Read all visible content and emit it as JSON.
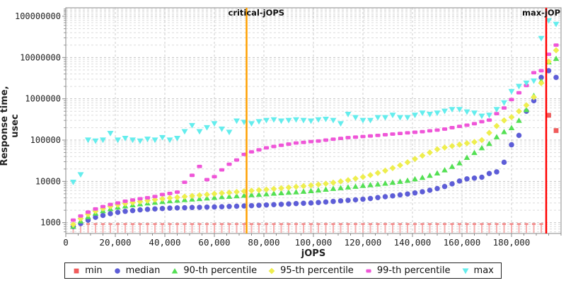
{
  "chart_data": {
    "type": "scatter",
    "title": "",
    "xlabel": "jOPS",
    "ylabel": "Response time, usec",
    "x_ticks": [
      0,
      20000,
      40000,
      60000,
      80000,
      100000,
      120000,
      140000,
      160000,
      180000
    ],
    "x_minor_step": 5000,
    "xlim": [
      0,
      200000
    ],
    "y_scale": "log",
    "y_ticks": [
      1000,
      10000,
      100000,
      1000000,
      10000000,
      100000000
    ],
    "ylim": [
      553,
      164000000
    ],
    "grid": true,
    "legend_position": "bottom",
    "vlines": [
      {
        "label": "critical-jOPS",
        "x": 73000,
        "color": "#ffa000"
      },
      {
        "label": "max-jOPS",
        "x": 194000,
        "color": "#ff0000"
      }
    ],
    "x": [
      3000,
      6000,
      9000,
      12000,
      15000,
      18000,
      21000,
      24000,
      27000,
      30000,
      33000,
      36000,
      39000,
      42000,
      45000,
      48000,
      51000,
      54000,
      57000,
      60000,
      63000,
      66000,
      69000,
      72000,
      75000,
      78000,
      81000,
      84000,
      87000,
      90000,
      93000,
      96000,
      99000,
      102000,
      105000,
      108000,
      111000,
      114000,
      117000,
      120000,
      123000,
      126000,
      129000,
      132000,
      135000,
      138000,
      141000,
      144000,
      147000,
      150000,
      153000,
      156000,
      159000,
      162000,
      165000,
      168000,
      171000,
      174000,
      177000,
      180000,
      183000,
      186000,
      189000,
      192000,
      195000,
      198000
    ],
    "series": [
      {
        "name": "min",
        "marker": "square",
        "color": "#f25b5b",
        "values": [
          930,
          930,
          930,
          930,
          930,
          930,
          930,
          930,
          930,
          930,
          930,
          930,
          930,
          930,
          930,
          930,
          930,
          930,
          930,
          930,
          930,
          930,
          930,
          930,
          930,
          930,
          930,
          930,
          930,
          930,
          930,
          930,
          930,
          930,
          930,
          930,
          930,
          930,
          930,
          930,
          930,
          930,
          930,
          930,
          930,
          930,
          930,
          930,
          930,
          930,
          930,
          930,
          930,
          930,
          930,
          930,
          930,
          930,
          930,
          930,
          930,
          930,
          930,
          930,
          400000,
          170000
        ]
      },
      {
        "name": "median",
        "marker": "circle",
        "color": "#5d5dd8",
        "values": [
          800,
          950,
          1150,
          1350,
          1500,
          1650,
          1780,
          1880,
          1960,
          2040,
          2100,
          2150,
          2200,
          2250,
          2280,
          2300,
          2330,
          2350,
          2380,
          2400,
          2430,
          2470,
          2500,
          2540,
          2580,
          2630,
          2680,
          2730,
          2780,
          2840,
          2900,
          2950,
          3000,
          3080,
          3170,
          3270,
          3380,
          3480,
          3580,
          3700,
          3850,
          4050,
          4250,
          4450,
          4700,
          4950,
          5250,
          5600,
          6100,
          6700,
          7500,
          8700,
          10200,
          11500,
          12000,
          12600,
          15500,
          17000,
          29000,
          77000,
          130000,
          500000,
          900000,
          3300000,
          4800000,
          3300000
        ]
      },
      {
        "name": "90-th percentile",
        "marker": "triangle-up",
        "color": "#54e054",
        "values": [
          820,
          1100,
          1400,
          1700,
          1950,
          2180,
          2380,
          2550,
          2700,
          2850,
          3000,
          3120,
          3250,
          3400,
          3500,
          3620,
          3720,
          3820,
          3950,
          4100,
          4250,
          4350,
          4480,
          4600,
          4750,
          4850,
          4980,
          5150,
          5300,
          5450,
          5550,
          5750,
          5950,
          6150,
          6450,
          6750,
          7000,
          7300,
          7600,
          7950,
          8300,
          8600,
          9000,
          9500,
          10000,
          10600,
          11500,
          12500,
          14000,
          16000,
          19000,
          23000,
          28000,
          38000,
          50000,
          65000,
          83000,
          120000,
          160000,
          200000,
          300000,
          550000,
          1200000,
          2700000,
          7800000,
          9500000
        ]
      },
      {
        "name": "95-th percentile",
        "marker": "diamond",
        "color": "#eeee4e",
        "values": [
          900,
          1250,
          1600,
          1900,
          2200,
          2480,
          2700,
          2900,
          3080,
          3250,
          3420,
          3600,
          3780,
          3950,
          4100,
          4280,
          4450,
          4600,
          4800,
          5000,
          5200,
          5350,
          5550,
          5750,
          5950,
          6150,
          6350,
          6600,
          6850,
          7100,
          7400,
          7700,
          8000,
          8400,
          8800,
          9300,
          10000,
          10700,
          11700,
          12800,
          14200,
          16000,
          18200,
          21000,
          24500,
          29000,
          35000,
          42000,
          50000,
          60000,
          66000,
          72000,
          78000,
          84000,
          90000,
          100000,
          150000,
          220000,
          300000,
          360000,
          500000,
          700000,
          1100000,
          2400000,
          8000000,
          15000000
        ]
      },
      {
        "name": "99-th percentile",
        "marker": "hbar",
        "color": "#ef56d8",
        "values": [
          1150,
          1450,
          1800,
          2150,
          2450,
          2750,
          3000,
          3300,
          3550,
          3800,
          4000,
          4300,
          4800,
          5100,
          5500,
          9500,
          14000,
          23000,
          11000,
          13000,
          19000,
          26000,
          33000,
          45000,
          52000,
          58000,
          65000,
          70000,
          75000,
          80000,
          85000,
          88000,
          92000,
          95000,
          100000,
          105000,
          110000,
          115000,
          118000,
          122000,
          126000,
          130000,
          135000,
          140000,
          145000,
          150000,
          155000,
          160000,
          168000,
          175000,
          185000,
          200000,
          215000,
          230000,
          250000,
          280000,
          305000,
          437000,
          600000,
          960000,
          1400000,
          2100000,
          4300000,
          4800000,
          12000000,
          20000000
        ]
      },
      {
        "name": "max",
        "marker": "triangle-down",
        "color": "#64eded",
        "values": [
          9500,
          14500,
          100000,
          95000,
          100000,
          145000,
          100000,
          110000,
          100000,
          95000,
          105000,
          100000,
          115000,
          100000,
          110000,
          160000,
          225000,
          160000,
          200000,
          250000,
          185000,
          155000,
          290000,
          270000,
          250000,
          280000,
          300000,
          310000,
          290000,
          300000,
          310000,
          300000,
          290000,
          310000,
          320000,
          300000,
          250000,
          420000,
          350000,
          300000,
          300000,
          350000,
          350000,
          400000,
          350000,
          350000,
          400000,
          450000,
          420000,
          450000,
          500000,
          550000,
          550000,
          480000,
          450000,
          380000,
          400000,
          550000,
          800000,
          1500000,
          2000000,
          2400000,
          2700000,
          29000000,
          78000000,
          64000000
        ]
      }
    ]
  }
}
